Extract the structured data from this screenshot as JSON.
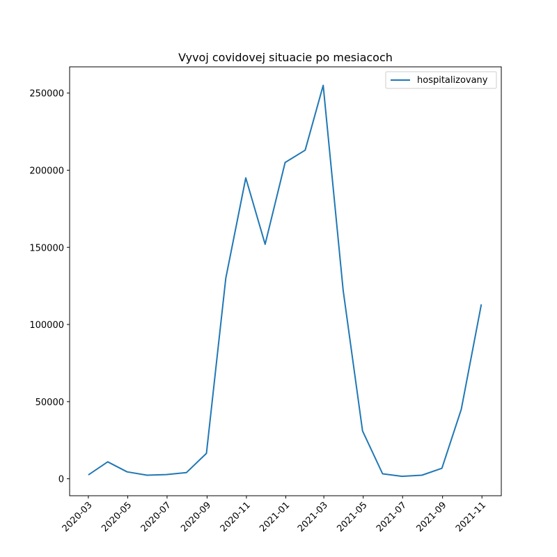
{
  "chart_data": {
    "type": "line",
    "title": "Vyvoj covidovej situacie po mesiacoch",
    "xlabel": "",
    "ylabel": "",
    "series": [
      {
        "name": "hospitalizovany",
        "color": "#1f77b4",
        "x": [
          "2020-03-01",
          "2020-03-31",
          "2020-04-30",
          "2020-05-31",
          "2020-06-30",
          "2020-07-31",
          "2020-08-31",
          "2020-09-30",
          "2020-10-31",
          "2020-11-30",
          "2020-12-31",
          "2021-01-31",
          "2021-02-28",
          "2021-03-31",
          "2021-04-30",
          "2021-05-31",
          "2021-06-30",
          "2021-07-31",
          "2021-08-31",
          "2021-09-30",
          "2021-10-31"
        ],
        "values": [
          2500,
          11000,
          4500,
          2300,
          2700,
          4000,
          16500,
          130000,
          195000,
          152000,
          205000,
          213000,
          255000,
          122000,
          31000,
          3200,
          1600,
          2300,
          6800,
          45000,
          113000
        ]
      }
    ],
    "x_ticks": [
      "2020-03",
      "2020-05",
      "2020-07",
      "2020-09",
      "2020-11",
      "2021-01",
      "2021-03",
      "2021-05",
      "2021-07",
      "2021-09",
      "2021-11"
    ],
    "y_ticks": [
      0,
      50000,
      100000,
      150000,
      200000,
      250000
    ],
    "xlim": [
      "2020-02-01",
      "2021-12-01"
    ],
    "ylim": [
      -11000,
      267000
    ],
    "grid": false,
    "legend_position": "top-right"
  }
}
